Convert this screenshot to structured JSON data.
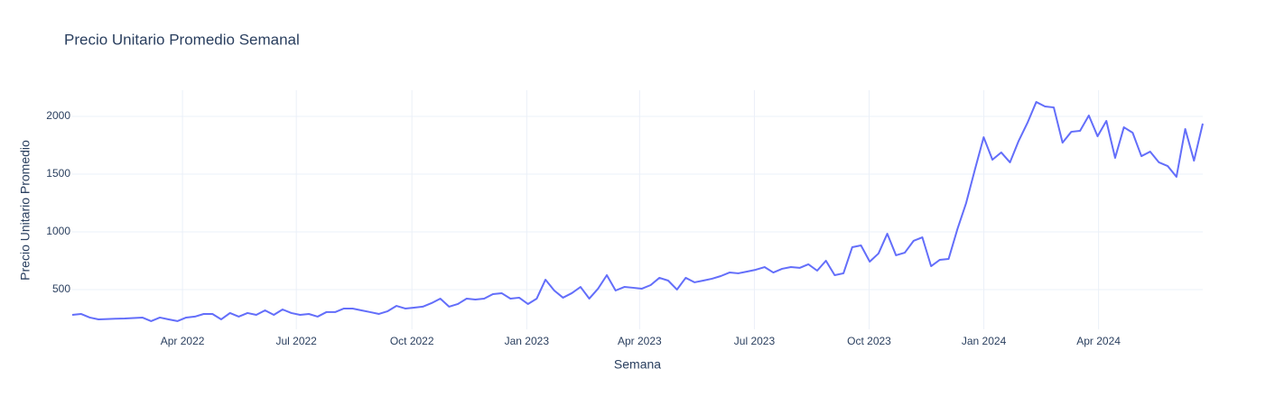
{
  "chart_data": {
    "type": "line",
    "title": "Precio Unitario Promedio Semanal",
    "x_label": "Semana",
    "y_label": "Precio Unitario Promedio",
    "series": [
      {
        "name": "Precio Unitario Promedio",
        "color": "#636efa",
        "values": [
          281,
          289,
          258,
          242,
          245,
          248,
          250,
          254,
          258,
          227,
          258,
          242,
          227,
          258,
          266,
          289,
          289,
          242,
          297,
          266,
          297,
          281,
          320,
          281,
          328,
          297,
          281,
          289,
          266,
          305,
          305,
          336,
          336,
          320,
          305,
          289,
          313,
          359,
          336,
          344,
          352,
          383,
          422,
          352,
          375,
          422,
          414,
          422,
          461,
          469,
          422,
          430,
          375,
          422,
          586,
          492,
          430,
          469,
          523,
          422,
          508,
          625,
          492,
          523,
          516,
          508,
          539,
          602,
          578,
          500,
          602,
          563,
          578,
          594,
          617,
          648,
          641,
          656,
          672,
          695,
          648,
          680,
          695,
          688,
          719,
          664,
          750,
          625,
          641,
          867,
          883,
          742,
          813,
          984,
          797,
          820,
          922,
          953,
          703,
          758,
          766,
          1023,
          1250,
          1539,
          1820,
          1625,
          1688,
          1602,
          1789,
          1945,
          2125,
          2086,
          2078,
          1773,
          1867,
          1875,
          2008,
          1828,
          1961,
          1641,
          1906,
          1859,
          1656,
          1695,
          1602,
          1570,
          1477,
          1891,
          1617,
          1938
        ]
      }
    ],
    "xlim": [
      0,
      129
    ],
    "xticks": [
      {
        "value": 12.58,
        "label": "Apr 2022"
      },
      {
        "value": 25.57,
        "label": "Jul 2022"
      },
      {
        "value": 38.76,
        "label": "Oct 2022"
      },
      {
        "value": 51.86,
        "label": "Jan 2023"
      },
      {
        "value": 64.74,
        "label": "Apr 2023"
      },
      {
        "value": 77.84,
        "label": "Jul 2023"
      },
      {
        "value": 90.93,
        "label": "Oct 2023"
      },
      {
        "value": 104.02,
        "label": "Jan 2024"
      },
      {
        "value": 117.11,
        "label": "Apr 2024"
      }
    ],
    "ylim": [
      156,
      2227
    ],
    "yticks": [
      500,
      1000,
      1500,
      2000
    ],
    "grid": true
  }
}
